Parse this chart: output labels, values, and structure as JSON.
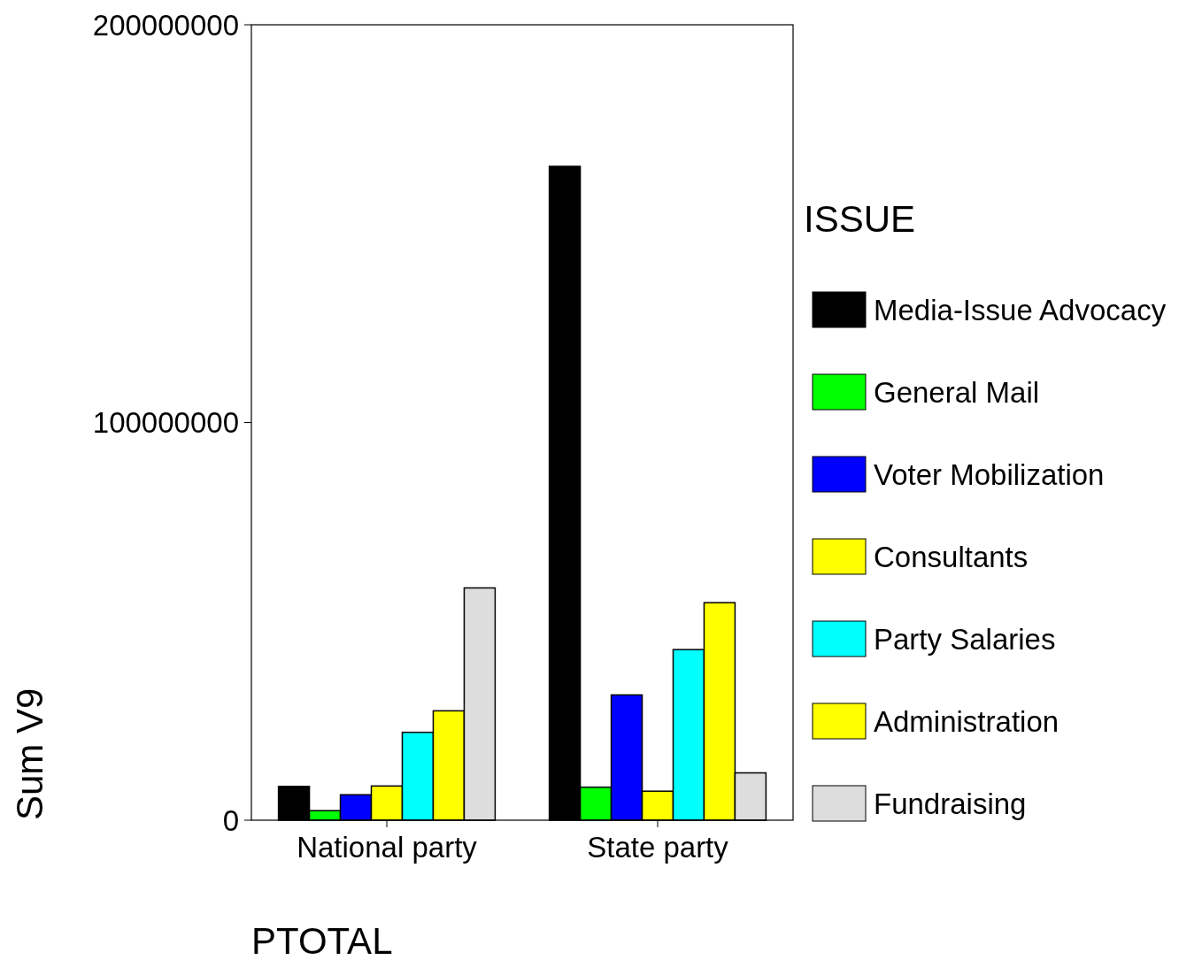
{
  "chart_data": {
    "type": "bar",
    "xlabel": "PTOTAL",
    "ylabel": "Sum V9",
    "legend_title": "ISSUE",
    "legend": "right",
    "grid": false,
    "categories": [
      "National party",
      "State party"
    ],
    "series": [
      {
        "name": "Media-Issue Advocacy",
        "color": "#000000",
        "values": [
          8500000,
          164400000
        ]
      },
      {
        "name": "General Mail",
        "color": "#00ff00",
        "values": [
          2400000,
          8300000
        ]
      },
      {
        "name": "Voter Mobilization",
        "color": "#0000ff",
        "values": [
          6400000,
          31500000
        ]
      },
      {
        "name": "Consultants",
        "color": "#ffff00",
        "values": [
          8600000,
          7300000
        ]
      },
      {
        "name": "Party Salaries",
        "color": "#00ffff",
        "values": [
          22100000,
          42900000
        ]
      },
      {
        "name": "Administration",
        "color": "#ffff00",
        "values": [
          27500000,
          54700000
        ]
      },
      {
        "name": "Fundraising",
        "color": "#dddddd",
        "values": [
          58400000,
          11900000
        ]
      }
    ],
    "ylim": [
      0,
      200000000
    ],
    "yticks": [
      0,
      100000000,
      200000000
    ]
  }
}
